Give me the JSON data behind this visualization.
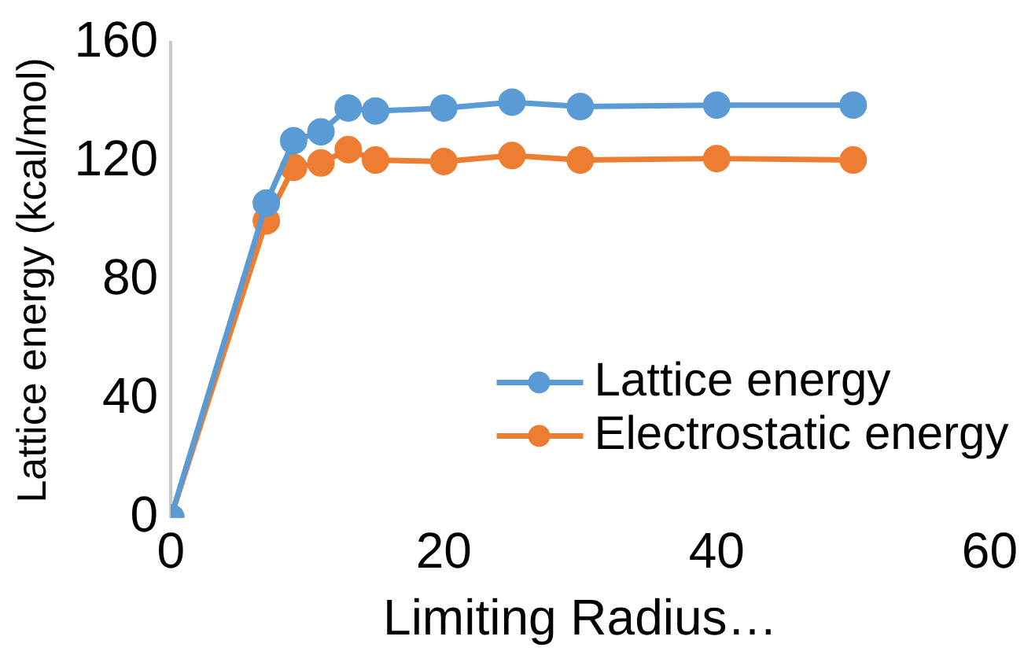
{
  "chart_data": {
    "type": "line",
    "xlabel": "Limiting Radius…",
    "ylabel": "Lattice energy (kcal/mol)",
    "x": [
      0,
      7,
      9,
      11,
      13,
      15,
      20,
      25,
      30,
      40,
      50
    ],
    "series": [
      {
        "name": "Lattice energy",
        "color": "#5b9bd5",
        "values": [
          0,
          106,
          127,
          130,
          138,
          137,
          138,
          140,
          138.5,
          139,
          139
        ]
      },
      {
        "name": "Electrostatic energy",
        "color": "#ed7d31",
        "values": [
          0,
          100,
          118,
          119.5,
          124,
          120.5,
          120,
          122,
          120.5,
          121,
          120.5
        ]
      }
    ],
    "xlim": [
      0,
      60
    ],
    "xticks": [
      0,
      20,
      40,
      60
    ],
    "ylim": [
      0,
      160
    ],
    "yticks": [
      0,
      40,
      80,
      120,
      160
    ],
    "grid": false,
    "legend": "bottom right",
    "marker": "circle",
    "line_style": "solid"
  }
}
